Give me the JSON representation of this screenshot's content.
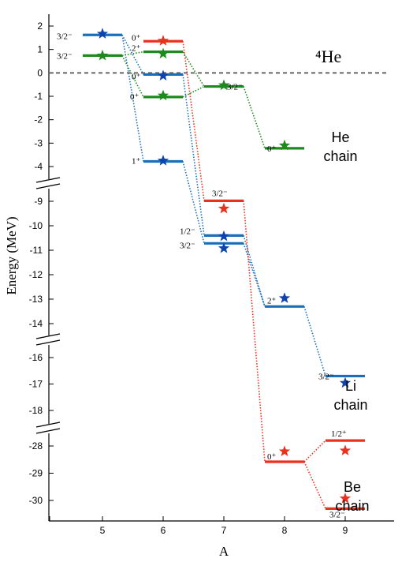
{
  "chart_data": {
    "type": "energy-level diagram",
    "xlabel": "A",
    "ylabel": "Energy (MeV)",
    "x_ticks": [
      "5",
      "6",
      "7",
      "8",
      "9"
    ],
    "y_segments": [
      {
        "range": [
          -4.3,
          2.3
        ],
        "ticks": [
          2,
          1,
          0,
          -1,
          -2,
          -3,
          -4
        ]
      },
      {
        "range": [
          -14.4,
          -8.6
        ],
        "ticks": [
          -9,
          -10,
          -11,
          -12,
          -13,
          -14
        ]
      },
      {
        "range": [
          -18.6,
          -15.6
        ],
        "ticks": [
          -16,
          -17,
          -18
        ]
      },
      {
        "range": [
          -30.5,
          -27.6
        ],
        "ticks": [
          -28,
          -29,
          -30
        ]
      }
    ],
    "y_tick_labels": {
      "2": "2",
      "1": "1",
      "0": "0",
      "-1": "-1",
      "-2": "-2",
      "-3": "-3",
      "-4": "-4",
      "-9": "-9",
      "-10": "-10",
      "-11": "-11",
      "-12": "-12",
      "-13": "-13",
      "-14": "-14",
      "-16": "-16",
      "-17": "-17",
      "-18": "-18",
      "-28": "-28",
      "-29": "-29",
      "-30": "-30"
    },
    "reference": {
      "label": "⁴He",
      "energy": 0
    },
    "colors": {
      "Li": "#1a6fba",
      "He": "#1c8a1c",
      "Be": "#e8321e",
      "Li_star": "#1144aa",
      "ref": "#666666"
    },
    "series": [
      {
        "name": "Li",
        "levels": [
          {
            "A": 5,
            "energy": 1.62,
            "label": "3/2⁻",
            "exp": 1.67
          },
          {
            "A": 6,
            "energy": -0.07,
            "label": "0⁺",
            "exp": -0.12
          },
          {
            "A": 6,
            "energy": -3.78,
            "label": "1⁺",
            "exp": -3.75
          },
          {
            "A": 7,
            "energy": -10.4,
            "label": "1/2⁻",
            "exp": -10.43
          },
          {
            "A": 7,
            "energy": -10.72,
            "label": "3/2⁻",
            "exp": -10.92
          },
          {
            "A": 8,
            "energy": -13.3,
            "label": "2⁺",
            "exp": -12.96
          },
          {
            "A": 9,
            "energy": -16.7,
            "label": "3/2⁻",
            "exp": -16.96
          }
        ],
        "links": [
          [
            0,
            1
          ],
          [
            0,
            2
          ],
          [
            1,
            3
          ],
          [
            2,
            4
          ],
          [
            3,
            5
          ],
          [
            4,
            5
          ],
          [
            5,
            6
          ]
        ]
      },
      {
        "name": "He",
        "levels": [
          {
            "A": 5,
            "energy": 0.74,
            "label": "3/2⁻",
            "exp": 0.74
          },
          {
            "A": 6,
            "energy": 0.9,
            "label": "2⁺",
            "exp": 0.82
          },
          {
            "A": 6,
            "energy": -1.03,
            "label": "0⁺",
            "exp": -0.97
          },
          {
            "A": 7,
            "energy": -0.58,
            "label": "3/2⁻",
            "exp": -0.53
          },
          {
            "A": 8,
            "energy": -3.22,
            "label": "0⁺",
            "exp": -3.1
          }
        ],
        "links": [
          [
            0,
            1
          ],
          [
            0,
            2
          ],
          [
            1,
            3
          ],
          [
            2,
            3
          ],
          [
            3,
            4
          ]
        ]
      },
      {
        "name": "Be",
        "levels": [
          {
            "A": 6,
            "energy": 1.35,
            "label": "0⁺",
            "exp": 1.37
          },
          {
            "A": 7,
            "energy": -8.98,
            "label": "3/2⁻",
            "exp": -9.3
          },
          {
            "A": 8,
            "energy": -28.58,
            "label": "0⁺",
            "exp": -28.2
          },
          {
            "A": 9,
            "energy": -27.8,
            "label": "1/2⁺",
            "exp": -28.17
          },
          {
            "A": 9,
            "energy": -30.3,
            "label": "3/2⁻",
            "exp": -29.93
          }
        ],
        "links": [
          [
            0,
            1
          ],
          [
            1,
            2
          ],
          [
            2,
            3
          ],
          [
            2,
            4
          ]
        ]
      }
    ],
    "chain_labels": [
      {
        "series": "He",
        "lines": [
          "He",
          "chain"
        ]
      },
      {
        "series": "Li",
        "lines": [
          "Li",
          "chain"
        ]
      },
      {
        "series": "Be",
        "lines": [
          "Be",
          "chain"
        ]
      }
    ]
  }
}
